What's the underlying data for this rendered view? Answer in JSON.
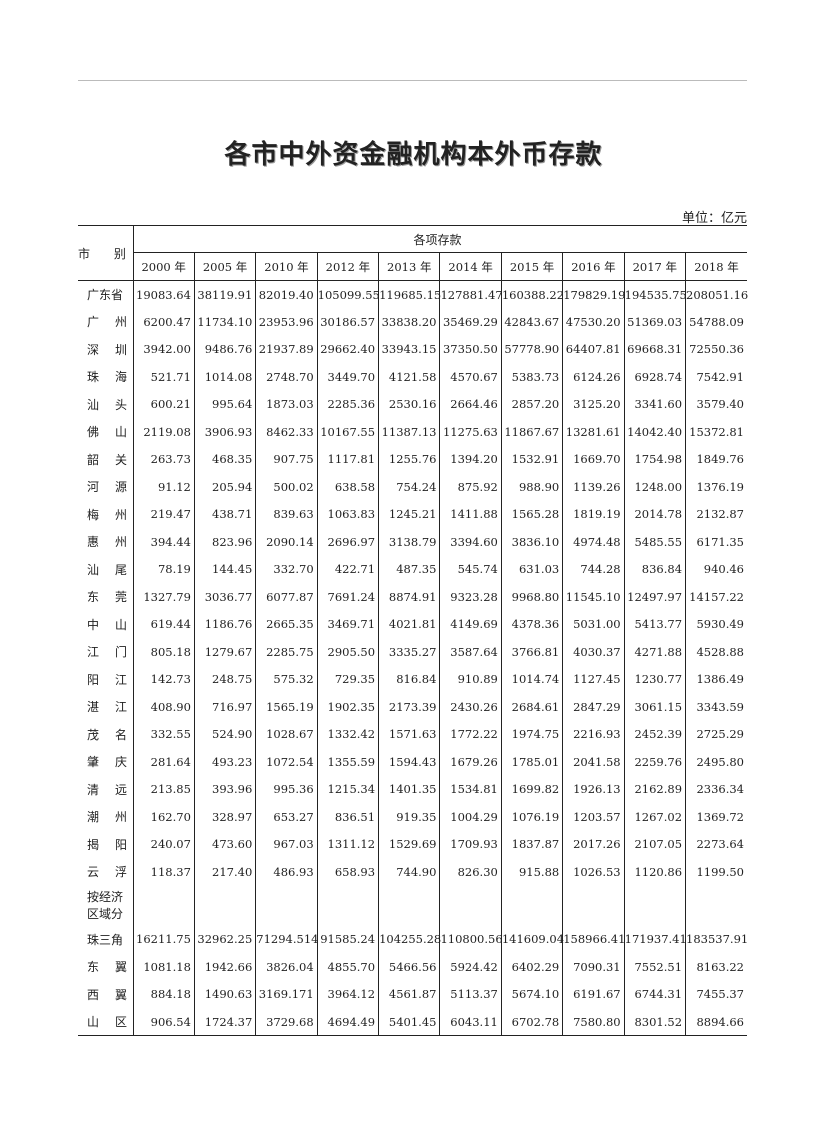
{
  "title": "各市中外资金融机构本外币存款",
  "unit": "单位：亿元",
  "table": {
    "row_header": "市 别",
    "group_header": "各项存款",
    "years": [
      "2000 年",
      "2005 年",
      "2010 年",
      "2012 年",
      "2013 年",
      "2014 年",
      "2015 年",
      "2016 年",
      "2017 年",
      "2018 年"
    ],
    "rows": [
      {
        "name": "广东省",
        "values": [
          "19083.64",
          "38119.91",
          "82019.40",
          "105099.55",
          "119685.15",
          "127881.47",
          "160388.22",
          "179829.19",
          "194535.75",
          "208051.16"
        ]
      },
      {
        "name": "广州",
        "values": [
          "6200.47",
          "11734.10",
          "23953.96",
          "30186.57",
          "33838.20",
          "35469.29",
          "42843.67",
          "47530.20",
          "51369.03",
          "54788.09"
        ]
      },
      {
        "name": "深圳",
        "values": [
          "3942.00",
          "9486.76",
          "21937.89",
          "29662.40",
          "33943.15",
          "37350.50",
          "57778.90",
          "64407.81",
          "69668.31",
          "72550.36"
        ]
      },
      {
        "name": "珠海",
        "values": [
          "521.71",
          "1014.08",
          "2748.70",
          "3449.70",
          "4121.58",
          "4570.67",
          "5383.73",
          "6124.26",
          "6928.74",
          "7542.91"
        ]
      },
      {
        "name": "汕头",
        "values": [
          "600.21",
          "995.64",
          "1873.03",
          "2285.36",
          "2530.16",
          "2664.46",
          "2857.20",
          "3125.20",
          "3341.60",
          "3579.40"
        ]
      },
      {
        "name": "佛山",
        "values": [
          "2119.08",
          "3906.93",
          "8462.33",
          "10167.55",
          "11387.13",
          "11275.63",
          "11867.67",
          "13281.61",
          "14042.40",
          "15372.81"
        ]
      },
      {
        "name": "韶关",
        "values": [
          "263.73",
          "468.35",
          "907.75",
          "1117.81",
          "1255.76",
          "1394.20",
          "1532.91",
          "1669.70",
          "1754.98",
          "1849.76"
        ]
      },
      {
        "name": "河源",
        "values": [
          "91.12",
          "205.94",
          "500.02",
          "638.58",
          "754.24",
          "875.92",
          "988.90",
          "1139.26",
          "1248.00",
          "1376.19"
        ]
      },
      {
        "name": "梅州",
        "values": [
          "219.47",
          "438.71",
          "839.63",
          "1063.83",
          "1245.21",
          "1411.88",
          "1565.28",
          "1819.19",
          "2014.78",
          "2132.87"
        ]
      },
      {
        "name": "惠州",
        "values": [
          "394.44",
          "823.96",
          "2090.14",
          "2696.97",
          "3138.79",
          "3394.60",
          "3836.10",
          "4974.48",
          "5485.55",
          "6171.35"
        ]
      },
      {
        "name": "汕尾",
        "values": [
          "78.19",
          "144.45",
          "332.70",
          "422.71",
          "487.35",
          "545.74",
          "631.03",
          "744.28",
          "836.84",
          "940.46"
        ]
      },
      {
        "name": "东莞",
        "values": [
          "1327.79",
          "3036.77",
          "6077.87",
          "7691.24",
          "8874.91",
          "9323.28",
          "9968.80",
          "11545.10",
          "12497.97",
          "14157.22"
        ]
      },
      {
        "name": "中山",
        "values": [
          "619.44",
          "1186.76",
          "2665.35",
          "3469.71",
          "4021.81",
          "4149.69",
          "4378.36",
          "5031.00",
          "5413.77",
          "5930.49"
        ]
      },
      {
        "name": "江门",
        "values": [
          "805.18",
          "1279.67",
          "2285.75",
          "2905.50",
          "3335.27",
          "3587.64",
          "3766.81",
          "4030.37",
          "4271.88",
          "4528.88"
        ]
      },
      {
        "name": "阳江",
        "values": [
          "142.73",
          "248.75",
          "575.32",
          "729.35",
          "816.84",
          "910.89",
          "1014.74",
          "1127.45",
          "1230.77",
          "1386.49"
        ]
      },
      {
        "name": "湛江",
        "values": [
          "408.90",
          "716.97",
          "1565.19",
          "1902.35",
          "2173.39",
          "2430.26",
          "2684.61",
          "2847.29",
          "3061.15",
          "3343.59"
        ]
      },
      {
        "name": "茂名",
        "values": [
          "332.55",
          "524.90",
          "1028.67",
          "1332.42",
          "1571.63",
          "1772.22",
          "1974.75",
          "2216.93",
          "2452.39",
          "2725.29"
        ]
      },
      {
        "name": "肇庆",
        "values": [
          "281.64",
          "493.23",
          "1072.54",
          "1355.59",
          "1594.43",
          "1679.26",
          "1785.01",
          "2041.58",
          "2259.76",
          "2495.80"
        ]
      },
      {
        "name": "清远",
        "values": [
          "213.85",
          "393.96",
          "995.36",
          "1215.34",
          "1401.35",
          "1534.81",
          "1699.82",
          "1926.13",
          "2162.89",
          "2336.34"
        ]
      },
      {
        "name": "潮州",
        "values": [
          "162.70",
          "328.97",
          "653.27",
          "836.51",
          "919.35",
          "1004.29",
          "1076.19",
          "1203.57",
          "1267.02",
          "1369.72"
        ]
      },
      {
        "name": "揭阳",
        "values": [
          "240.07",
          "473.60",
          "967.03",
          "1311.12",
          "1529.69",
          "1709.93",
          "1837.87",
          "2017.26",
          "2107.05",
          "2273.64"
        ]
      },
      {
        "name": "云浮",
        "values": [
          "118.37",
          "217.40",
          "486.93",
          "658.93",
          "744.90",
          "826.30",
          "915.88",
          "1026.53",
          "1120.86",
          "1199.50"
        ]
      }
    ],
    "group_label": "按经济区域分",
    "region_rows": [
      {
        "name": "珠三角",
        "values": [
          "16211.75",
          "32962.25",
          "71294.514",
          "91585.24",
          "104255.28",
          "110800.56",
          "141609.04",
          "158966.41",
          "171937.41",
          "183537.91"
        ]
      },
      {
        "name": "东翼",
        "values": [
          "1081.18",
          "1942.66",
          "3826.04",
          "4855.70",
          "5466.56",
          "5924.42",
          "6402.29",
          "7090.31",
          "7552.51",
          "8163.22"
        ]
      },
      {
        "name": "西翼",
        "values": [
          "884.18",
          "1490.63",
          "3169.171",
          "3964.12",
          "4561.87",
          "5113.37",
          "5674.10",
          "6191.67",
          "6744.31",
          "7455.37"
        ]
      },
      {
        "name": "山区",
        "values": [
          "906.54",
          "1724.37",
          "3729.68",
          "4694.49",
          "5401.45",
          "6043.11",
          "6702.78",
          "7580.80",
          "8301.52",
          "8894.66"
        ]
      }
    ]
  }
}
